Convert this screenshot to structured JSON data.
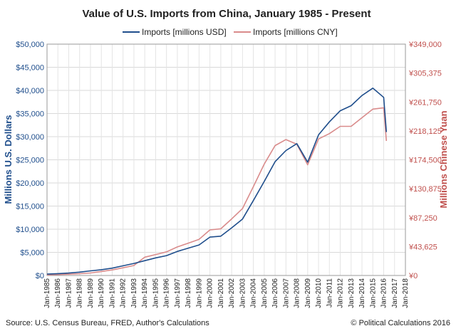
{
  "chart_data": {
    "type": "line",
    "title": "Value of U.S. Imports from China, January 1985 - Present",
    "ylabel_left": "Millions U.S. Dollars",
    "ylabel_right": "Millions Chinese Yuan",
    "ylim_left": [
      0,
      50000
    ],
    "ylim_right": [
      0,
      349000
    ],
    "yticks_left": [
      "$0",
      "$5,000",
      "$10,000",
      "$15,000",
      "$20,000",
      "$25,000",
      "$30,000",
      "$35,000",
      "$40,000",
      "$45,000",
      "$50,000"
    ],
    "yticks_right": [
      "¥0",
      "¥43,625",
      "¥87,250",
      "¥130,875",
      "¥174,500",
      "¥218,125",
      "¥261,750",
      "¥305,375",
      "¥349,000"
    ],
    "xticks": [
      "Jan-1985",
      "Jan-1986",
      "Jan-1987",
      "Jan-1988",
      "Jan-1989",
      "Jan-1990",
      "Jan-1991",
      "Jan-1992",
      "Jan-1993",
      "Jan-1994",
      "Jan-1995",
      "Jan-1996",
      "Jan-1997",
      "Jan-1998",
      "Jan-1999",
      "Jan-2000",
      "Jan-2001",
      "Jan-2002",
      "Jan-2003",
      "Jan-2004",
      "Jan-2005",
      "Jan-2006",
      "Jan-2007",
      "Jan-2008",
      "Jan-2009",
      "Jan-2010",
      "Jan-2011",
      "Jan-2012",
      "Jan-2013",
      "Jan-2014",
      "Jan-2015",
      "Jan-2016",
      "Jan-2017",
      "Jan-2018"
    ],
    "xlim": [
      1985,
      2018
    ],
    "grid": true,
    "legend_position": "top",
    "series": [
      {
        "name": "Imports [millions USD]",
        "axis": "left",
        "color": "#1f4e8c",
        "x": [
          1985,
          1986,
          1987,
          1988,
          1989,
          1990,
          1991,
          1992,
          1993,
          1994,
          1995,
          1996,
          1997,
          1998,
          1999,
          2000,
          2001,
          2002,
          2003,
          2004,
          2005,
          2006,
          2007,
          2008,
          2009,
          2010,
          2011,
          2012,
          2013,
          2014,
          2015,
          2016,
          2016.25
        ],
        "values": [
          300,
          400,
          520,
          720,
          1000,
          1250,
          1580,
          2100,
          2600,
          3200,
          3800,
          4300,
          5200,
          5900,
          6600,
          8300,
          8500,
          10300,
          12200,
          16200,
          20300,
          24600,
          27000,
          28500,
          24500,
          30400,
          33200,
          35600,
          36700,
          38900,
          40500,
          38500,
          31000
        ]
      },
      {
        "name": "Imports [millions CNY]",
        "axis": "right",
        "color": "#d98b8b",
        "x": [
          1985,
          1986,
          1987,
          1988,
          1989,
          1990,
          1991,
          1992,
          1993,
          1994,
          1995,
          1996,
          1997,
          1998,
          1999,
          2000,
          2001,
          2002,
          2003,
          2004,
          2005,
          2006,
          2007,
          2008,
          2009,
          2010,
          2011,
          2012,
          2013,
          2014,
          2015,
          2016,
          2016.25
        ],
        "values": [
          900,
          1400,
          1900,
          2700,
          3800,
          6000,
          8400,
          11600,
          15000,
          27600,
          31600,
          35700,
          43100,
          48800,
          54600,
          68700,
          70400,
          85300,
          101000,
          134000,
          168000,
          196000,
          205000,
          198000,
          167000,
          206000,
          214000,
          225000,
          225000,
          238000,
          251000,
          253000,
          203000
        ]
      }
    ],
    "source": "Source: U.S. Census Bureau, FRED, Author's Calculations",
    "credit": "© Political Calculations 2016"
  }
}
